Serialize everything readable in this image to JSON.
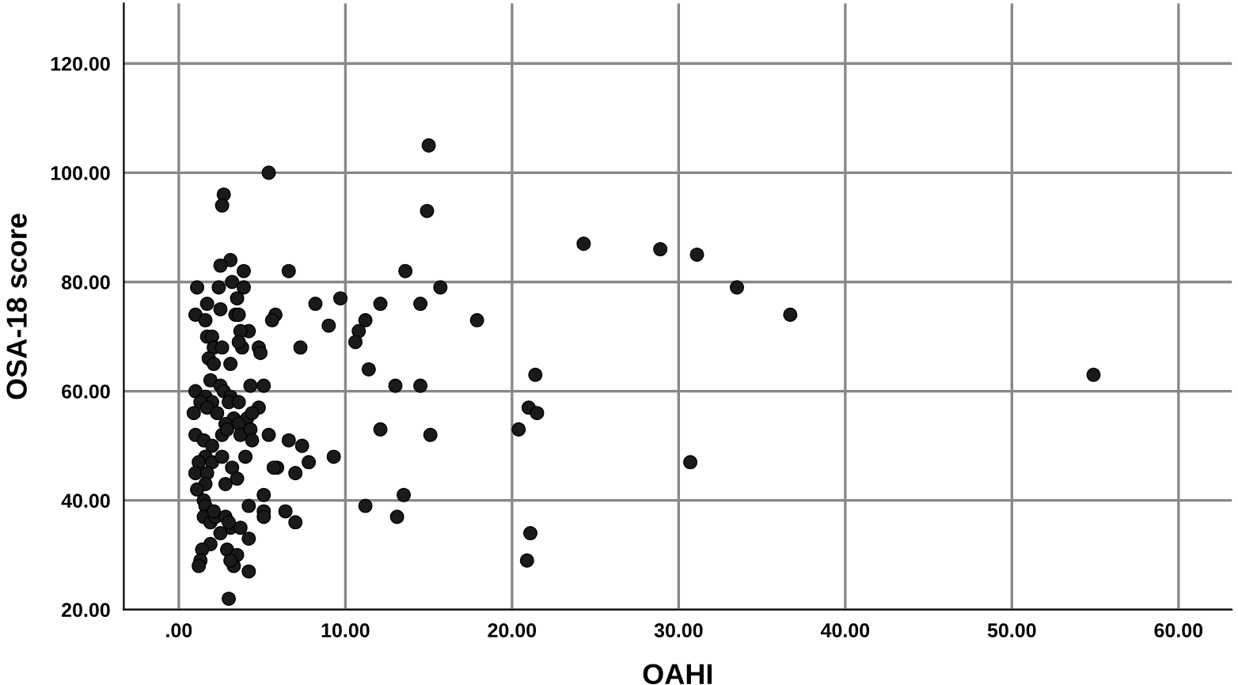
{
  "chart_data": {
    "type": "scatter",
    "xlabel": "OAHI",
    "ylabel": "OSA-18 score",
    "xlim": [
      -3.3,
      63.2
    ],
    "ylim": [
      20,
      131
    ],
    "xticks": [
      {
        "value": 0,
        "label": ".00"
      },
      {
        "value": 10,
        "label": "10.00"
      },
      {
        "value": 20,
        "label": "20.00"
      },
      {
        "value": 30,
        "label": "30.00"
      },
      {
        "value": 40,
        "label": "40.00"
      },
      {
        "value": 50,
        "label": "50.00"
      },
      {
        "value": 60,
        "label": "60.00"
      }
    ],
    "yticks": [
      {
        "value": 20,
        "label": "20.00"
      },
      {
        "value": 40,
        "label": "40.00"
      },
      {
        "value": 60,
        "label": "60.00"
      },
      {
        "value": 80,
        "label": "80.00"
      },
      {
        "value": 100,
        "label": "100.00"
      },
      {
        "value": 120,
        "label": "120.00"
      }
    ],
    "grid": true,
    "marker": "circle",
    "series": [
      {
        "color": "#1a1a1a",
        "x": [
          15.0,
          5.4,
          2.7,
          2.6,
          14.9,
          24.3,
          28.9,
          31.1,
          33.5,
          36.7,
          54.9,
          30.7,
          13.6,
          15.7,
          12.1,
          14.5,
          17.9,
          11.2,
          10.8,
          10.6,
          11.4,
          13.0,
          14.5,
          12.1,
          15.1,
          11.2,
          13.5,
          13.1,
          21.4,
          21.0,
          21.5,
          20.4,
          21.1,
          20.9,
          9.7,
          8.2,
          9.0,
          7.3,
          6.6,
          5.8,
          5.6,
          9.3,
          7.8,
          7.0,
          7.4,
          6.6,
          5.9,
          5.7,
          5.4,
          5.1,
          6.4,
          7.0,
          5.1,
          5.1,
          5.1,
          3.1,
          2.5,
          3.9,
          3.2,
          1.1,
          2.4,
          3.9,
          3.5,
          1.7,
          1.0,
          1.6,
          2.5,
          3.4,
          3.6,
          1.7,
          2.0,
          4.2,
          3.7,
          2.1,
          2.6,
          3.8,
          3.6,
          4.8,
          4.9,
          1.8,
          2.1,
          3.1,
          1.9,
          1.0,
          1.6,
          2.5,
          2.7,
          3.1,
          2.0,
          1.3,
          3.0,
          3.6,
          4.3,
          0.9,
          1.7,
          2.3,
          3.3,
          4.1,
          4.8,
          4.4,
          3.6,
          2.8,
          1.0,
          1.5,
          2.0,
          2.6,
          2.9,
          3.7,
          4.3,
          4.4,
          4.0,
          1.6,
          2.0,
          1.2,
          2.6,
          1.0,
          1.7,
          3.2,
          3.5,
          1.6,
          2.8,
          1.1,
          1.5,
          1.6,
          4.2,
          1.5,
          1.9,
          2.2,
          2.8,
          3.1,
          2.5,
          4.2,
          1.9,
          1.4,
          2.9,
          1.3,
          1.2,
          3.5,
          3.3,
          3.1,
          4.2,
          3.0,
          2.1,
          3.7,
          3.0
        ],
        "values": [
          105,
          100,
          96,
          94,
          93,
          87,
          86,
          85,
          79,
          74,
          63,
          47,
          82,
          79,
          76,
          76,
          73,
          73,
          71,
          69,
          64,
          61,
          61,
          53,
          52,
          39,
          41,
          37,
          63,
          57,
          56,
          53,
          34,
          29,
          77,
          76,
          72,
          68,
          82,
          74,
          73,
          48,
          47,
          45,
          50,
          51,
          46,
          46,
          52,
          61,
          38,
          36,
          41,
          38,
          37,
          84,
          83,
          82,
          80,
          79,
          79,
          79,
          77,
          76,
          74,
          73,
          75,
          74,
          74,
          70,
          70,
          71,
          71,
          68,
          68,
          68,
          69,
          68,
          67,
          66,
          65,
          65,
          62,
          60,
          59,
          61,
          60,
          59,
          58,
          58,
          58,
          58,
          61,
          56,
          57,
          56,
          55,
          55,
          57,
          56,
          54,
          54,
          52,
          51,
          50,
          52,
          53,
          52,
          53,
          51,
          48,
          48,
          47,
          47,
          48,
          45,
          45,
          46,
          44,
          43,
          43,
          42,
          40,
          39,
          39,
          37,
          36,
          37,
          37,
          35,
          34,
          33,
          32,
          31,
          31,
          29,
          28,
          30,
          28,
          29,
          27,
          22,
          38,
          35,
          36
        ]
      }
    ]
  }
}
